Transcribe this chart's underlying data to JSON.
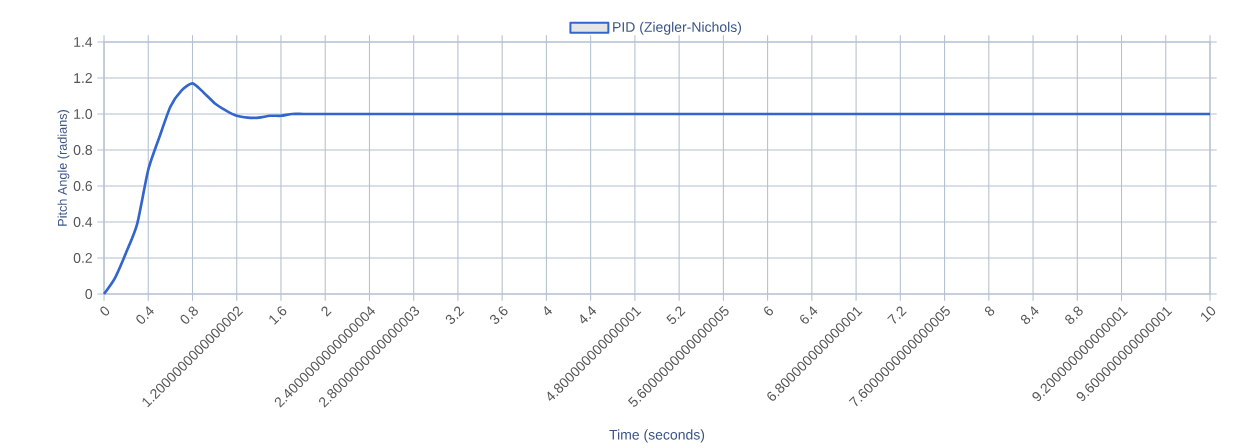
{
  "chart_data": {
    "type": "line",
    "xlabel": "Time (seconds)",
    "ylabel": "Pitch Angle (radians)",
    "categories": [
      "0",
      null,
      null,
      null,
      "0.4",
      null,
      null,
      null,
      "0.8",
      null,
      null,
      null,
      "1.2000000000000002",
      null,
      null,
      null,
      "1.6",
      null,
      null,
      null,
      "2",
      null,
      null,
      null,
      "2.4000000000000004",
      null,
      null,
      null,
      "2.8000000000000003",
      null,
      null,
      null,
      "3.2",
      null,
      null,
      null,
      "3.6",
      null,
      null,
      null,
      "4",
      null,
      null,
      null,
      "4.4",
      null,
      null,
      null,
      "4.800000000000001",
      null,
      null,
      null,
      "5.2",
      null,
      null,
      null,
      "5.6000000000000005",
      null,
      null,
      null,
      "6",
      null,
      null,
      null,
      "6.4",
      null,
      null,
      null,
      "6.800000000000001",
      null,
      null,
      null,
      "7.2",
      null,
      null,
      null,
      "7.6000000000000005",
      null,
      null,
      null,
      "8",
      null,
      null,
      null,
      "8.4",
      null,
      null,
      null,
      "8.8",
      null,
      null,
      null,
      "9.200000000000001",
      null,
      null,
      null,
      "9.600000000000001",
      null,
      null,
      null,
      "10"
    ],
    "series": [
      {
        "name": "PID (Ziegler-Nichols)",
        "color": "#3366cc",
        "values": [
          0,
          0.09,
          0.23,
          0.39,
          0.69,
          0.87,
          1.04,
          1.13,
          1.17,
          1.12,
          1.06,
          1.02,
          0.99,
          0.98,
          0.98,
          0.99,
          0.99,
          1,
          1,
          1,
          1,
          1,
          1,
          1,
          1,
          1,
          1,
          1,
          1,
          1,
          1,
          1,
          1,
          1,
          1,
          1,
          1,
          1,
          1,
          1,
          1,
          1,
          1,
          1,
          1,
          1,
          1,
          1,
          1,
          1,
          1,
          1,
          1,
          1,
          1,
          1,
          1,
          1,
          1,
          1,
          1,
          1,
          1,
          1,
          1,
          1,
          1,
          1,
          1,
          1,
          1,
          1,
          1,
          1,
          1,
          1,
          1,
          1,
          1,
          1,
          1,
          1,
          1,
          1,
          1,
          1,
          1,
          1,
          1,
          1,
          1,
          1,
          1,
          1,
          1,
          1,
          1,
          1,
          1,
          1,
          1
        ]
      }
    ],
    "ylim": [
      0,
      1.4
    ],
    "yticks": [
      0,
      0.2,
      0.4,
      0.6,
      0.8,
      {
        "value": 1,
        "label": "1.0"
      },
      1.2,
      1.4
    ],
    "grid": true,
    "legend": "top",
    "marker": "none",
    "line_style": "solid"
  }
}
